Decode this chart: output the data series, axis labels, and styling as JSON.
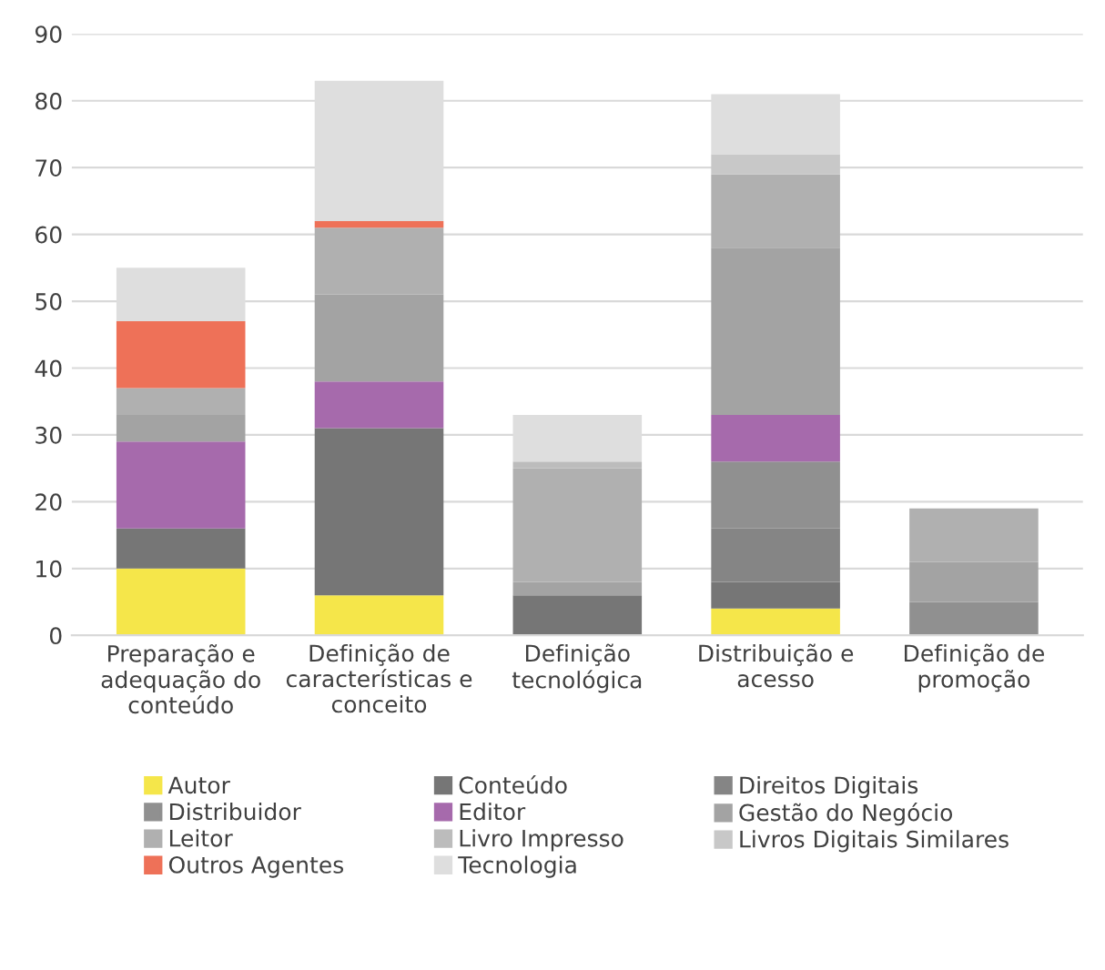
{
  "chart_data": {
    "type": "bar",
    "stacked": true,
    "categories": [
      "Preparação e\nadequação do\nconteúdo",
      "Definição de\ncaracterísticas e\nconceito",
      "Definição\ntecnológica",
      "Distribuição e\nacesso",
      "Definição de\npromoção"
    ],
    "series": [
      {
        "name": "Autor",
        "color": "#f5e64a",
        "values": [
          10,
          6,
          0,
          4,
          0
        ]
      },
      {
        "name": "Conteúdo",
        "color": "#767676",
        "values": [
          6,
          25,
          6,
          4,
          0
        ]
      },
      {
        "name": "Direitos Digitais",
        "color": "#858585",
        "values": [
          0,
          0,
          0,
          8,
          0
        ]
      },
      {
        "name": "Distribuidor",
        "color": "#909090",
        "values": [
          0,
          0,
          0,
          10,
          5
        ]
      },
      {
        "name": "Editor",
        "color": "#a66aac",
        "values": [
          13,
          7,
          0,
          7,
          0
        ]
      },
      {
        "name": "Gestão do Negócio",
        "color": "#a3a3a3",
        "values": [
          4,
          13,
          2,
          25,
          6
        ]
      },
      {
        "name": "Leitor",
        "color": "#b0b0b0",
        "values": [
          4,
          10,
          17,
          11,
          8
        ]
      },
      {
        "name": "Livro Impresso",
        "color": "#bcbcbc",
        "values": [
          0,
          0,
          1,
          0,
          0
        ]
      },
      {
        "name": "Livros Digitais Similares",
        "color": "#c8c8c8",
        "values": [
          0,
          0,
          0,
          3,
          0
        ]
      },
      {
        "name": "Outros Agentes",
        "color": "#ee7158",
        "values": [
          10,
          1,
          0,
          0,
          0
        ]
      },
      {
        "name": "Tecnologia",
        "color": "#dedede",
        "values": [
          8,
          21,
          7,
          9,
          0
        ]
      }
    ],
    "ylim": [
      0,
      90
    ],
    "yticks": [
      0,
      10,
      20,
      30,
      40,
      50,
      60,
      70,
      80,
      90
    ],
    "grid": "y",
    "legend": "bottom"
  }
}
